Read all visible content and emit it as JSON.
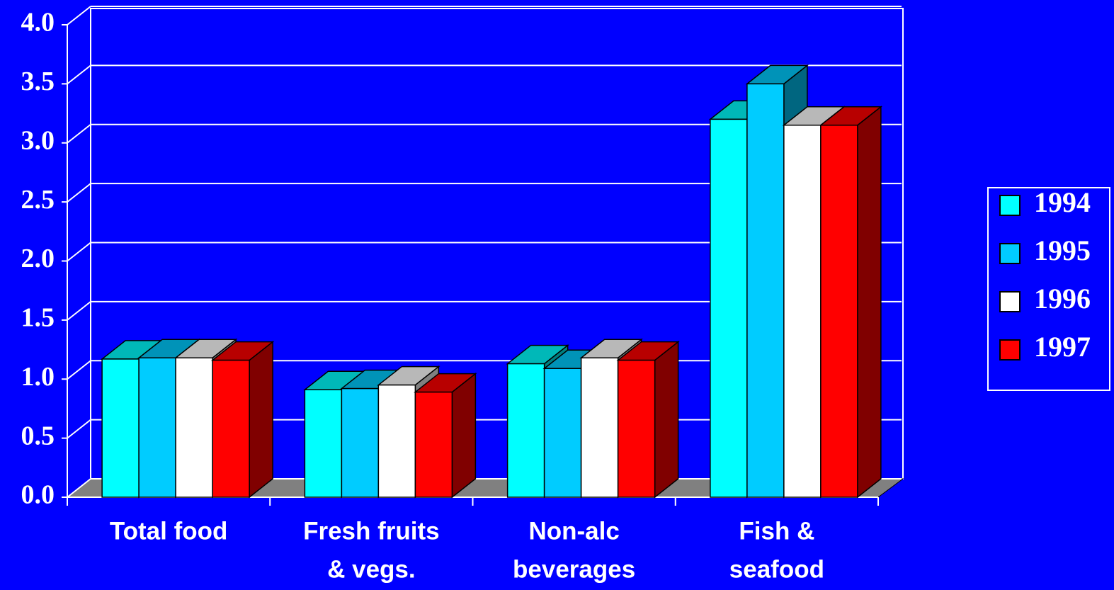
{
  "chart_data": {
    "type": "bar3d",
    "categories": [
      [
        "Total food"
      ],
      [
        "Fresh fruits",
        "& vegs."
      ],
      [
        "Non-alc",
        "beverages"
      ],
      [
        "Fish &",
        "seafood"
      ]
    ],
    "series": [
      {
        "name": "1994",
        "color": "#00ffff",
        "values": [
          1.17,
          0.91,
          1.13,
          3.2
        ]
      },
      {
        "name": "1995",
        "color": "#00ccff",
        "values": [
          1.18,
          0.92,
          1.09,
          3.5
        ]
      },
      {
        "name": "1996",
        "color": "#ffffff",
        "values": [
          1.18,
          0.95,
          1.18,
          3.15
        ]
      },
      {
        "name": "1997",
        "color": "#ff0000",
        "values": [
          1.16,
          0.89,
          1.16,
          3.15
        ]
      }
    ],
    "ylim": [
      0,
      4
    ],
    "yticks": [
      {
        "value": 0,
        "label": "0.0"
      },
      {
        "value": 0.5,
        "label": "0.5"
      },
      {
        "value": 1,
        "label": "1.0"
      },
      {
        "value": 1.5,
        "label": "1.5"
      },
      {
        "value": 2,
        "label": "2.0"
      },
      {
        "value": 2.5,
        "label": "2.5"
      },
      {
        "value": 3,
        "label": "3.0"
      },
      {
        "value": 3.5,
        "label": "3.5"
      },
      {
        "value": 4,
        "label": "4.0"
      }
    ],
    "grid": true
  }
}
